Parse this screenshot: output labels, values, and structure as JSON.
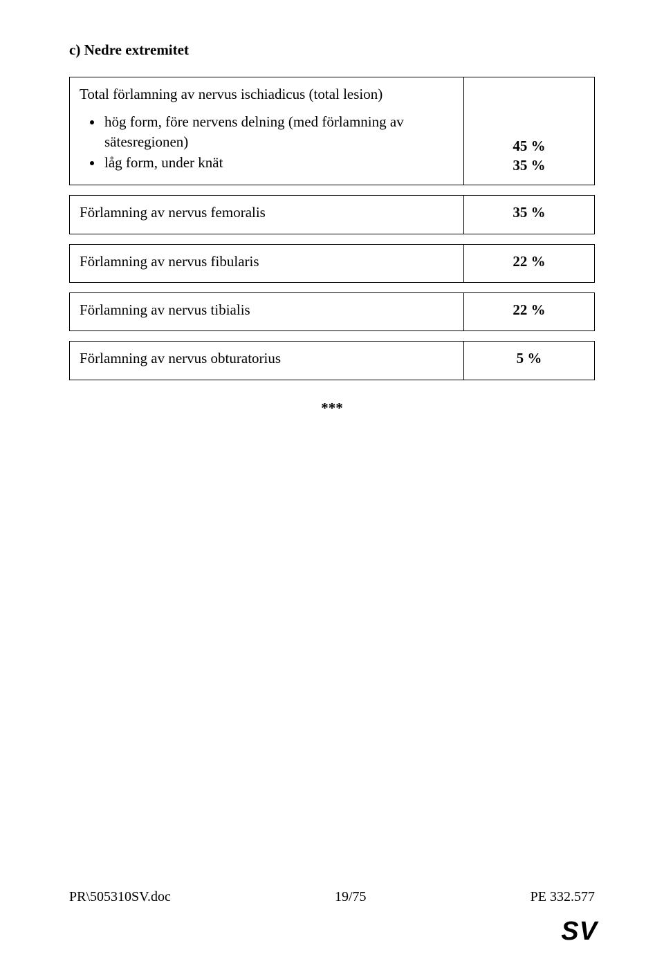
{
  "heading": "c) Nedre extremitet",
  "block1": {
    "subhead": "Total förlamning av nervus ischiadicus (total lesion)",
    "bullets": [
      "hög form, före nervens delning (med förlamning av sätesregionen)",
      "låg form, under knät"
    ],
    "values": [
      "45 %",
      "35 %"
    ]
  },
  "rows": [
    {
      "label": "Förlamning av nervus femoralis",
      "value": "35 %"
    },
    {
      "label": "Förlamning av nervus fibularis",
      "value": "22 %"
    },
    {
      "label": "Förlamning av nervus tibialis",
      "value": "22 %"
    },
    {
      "label": "Förlamning av nervus obturatorius",
      "value": "5 %"
    }
  ],
  "separator": "***",
  "footer": {
    "left": "PR\\505310SV.doc",
    "center": "19/75",
    "right": "PE 332.577"
  },
  "langmark": "SV"
}
